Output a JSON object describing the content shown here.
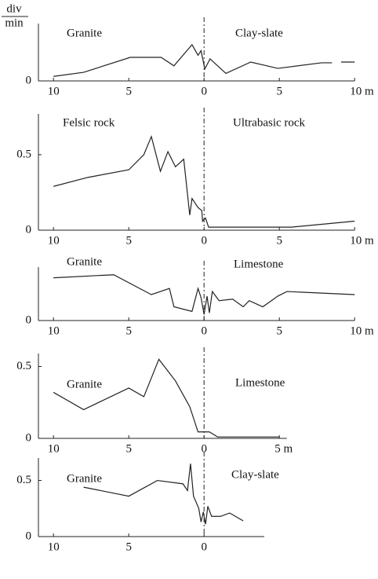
{
  "chart_data": [
    {
      "type": "line",
      "ylabel": {
        "numerator": "div",
        "denominator": "min"
      },
      "annotations": [
        "Granite",
        "Clay-slate"
      ],
      "x": [
        -10,
        -8,
        -4.9,
        -2.85,
        -2,
        -0.8,
        -0.4,
        -0.2,
        0.05,
        0.4,
        1.45,
        3.1,
        4.9,
        7.8,
        8.5,
        8.8,
        9.1,
        10
      ],
      "series": [
        {
          "color": "#222222",
          "values": [
            0.03,
            0.057,
            0.156,
            0.156,
            0.1,
            0.24,
            0.17,
            0.2,
            0.08,
            0.146,
            0.05,
            0.125,
            0.083,
            0.12,
            0.12,
            null,
            0.125,
            0.125
          ]
        }
      ],
      "xlim": [
        -11,
        10
      ],
      "ylim": [
        0,
        0.38
      ],
      "xticks": [
        {
          "value": -10,
          "label": "10"
        },
        {
          "value": -5,
          "label": "5"
        },
        0,
        5,
        {
          "value": 10,
          "label": "10 m"
        }
      ],
      "yticks": [
        0
      ]
    },
    {
      "type": "line",
      "annotations": [
        "Felsic rock",
        "Ultrabasic rock"
      ],
      "x": [
        -10,
        -7.7,
        -5,
        -4,
        -3.5,
        -2.9,
        -2.4,
        -1.9,
        -1.35,
        -0.95,
        -0.8,
        -0.4,
        -0.15,
        -0.1,
        0.1,
        0.3,
        5.8,
        10
      ],
      "series": [
        {
          "color": "#222222",
          "values": [
            0.29,
            0.35,
            0.4,
            0.5,
            0.62,
            0.39,
            0.52,
            0.42,
            0.47,
            0.1,
            0.21,
            0.15,
            0.13,
            0.06,
            0.08,
            0.02,
            0.02,
            0.06
          ]
        }
      ],
      "xlim": [
        -11,
        10
      ],
      "ylim": [
        0,
        0.77
      ],
      "xticks": [
        {
          "value": -10,
          "label": "10"
        },
        {
          "value": -5,
          "label": "5"
        },
        0,
        5,
        {
          "value": 10,
          "label": "10 m"
        }
      ],
      "yticks": [
        0,
        0.5
      ]
    },
    {
      "type": "line",
      "annotations": [
        "Granite",
        "Limestone"
      ],
      "x": [
        -10,
        -6,
        -3.5,
        -2.3,
        -2,
        -0.8,
        -0.4,
        -0.2,
        0,
        0.2,
        0.35,
        0.55,
        1,
        1.9,
        2.6,
        3,
        3.9,
        4.9,
        5.5,
        10
      ],
      "series": [
        {
          "color": "#222222",
          "values": [
            0.28,
            0.3,
            0.17,
            0.21,
            0.09,
            0.06,
            0.21,
            0.15,
            0.04,
            0.16,
            0.05,
            0.19,
            0.13,
            0.14,
            0.09,
            0.13,
            0.09,
            0.16,
            0.19,
            0.17
          ]
        }
      ],
      "xlim": [
        -11,
        10
      ],
      "ylim": [
        0,
        0.35
      ],
      "xticks": [
        {
          "value": -10,
          "label": "10"
        },
        {
          "value": -5,
          "label": "5"
        },
        0,
        5,
        {
          "value": 10,
          "label": "10 m"
        }
      ],
      "yticks": [
        0
      ]
    },
    {
      "type": "line",
      "annotations": [
        "Granite",
        "Limestone"
      ],
      "x": [
        -10,
        -8,
        -5,
        -4,
        -3,
        -1.9,
        -0.95,
        -0.4,
        0.35,
        0.9,
        5
      ],
      "series": [
        {
          "color": "#222222",
          "values": [
            0.32,
            0.2,
            0.35,
            0.29,
            0.55,
            0.4,
            0.22,
            0.045,
            0.045,
            0.01,
            0.01
          ]
        }
      ],
      "xlim": [
        -11,
        5.5
      ],
      "ylim": [
        0,
        0.59
      ],
      "xticks": [
        {
          "value": -10,
          "label": "10"
        },
        {
          "value": -5,
          "label": "5"
        },
        0,
        {
          "value": 5,
          "label": "5 m"
        }
      ],
      "yticks": [
        0,
        0.5
      ]
    },
    {
      "type": "line",
      "annotations": [
        "Granite",
        "Clay-slate"
      ],
      "x": [
        -8,
        -5,
        -3.1,
        -1.4,
        -1.1,
        -0.9,
        -0.7,
        -0.35,
        -0.2,
        -0.05,
        0.1,
        0.25,
        0.5,
        1.1,
        1.7,
        2.6
      ],
      "series": [
        {
          "color": "#222222",
          "values": [
            0.44,
            0.36,
            0.5,
            0.47,
            0.41,
            0.65,
            0.36,
            0.25,
            0.13,
            0.22,
            0.11,
            0.27,
            0.18,
            0.18,
            0.21,
            0.14
          ]
        }
      ],
      "xlim": [
        -11,
        4
      ],
      "ylim": [
        0,
        0.7
      ],
      "xticks": [
        {
          "value": -10,
          "label": "10"
        },
        {
          "value": -5,
          "label": "5"
        },
        0
      ],
      "yticks": [
        0,
        0.5
      ]
    }
  ]
}
